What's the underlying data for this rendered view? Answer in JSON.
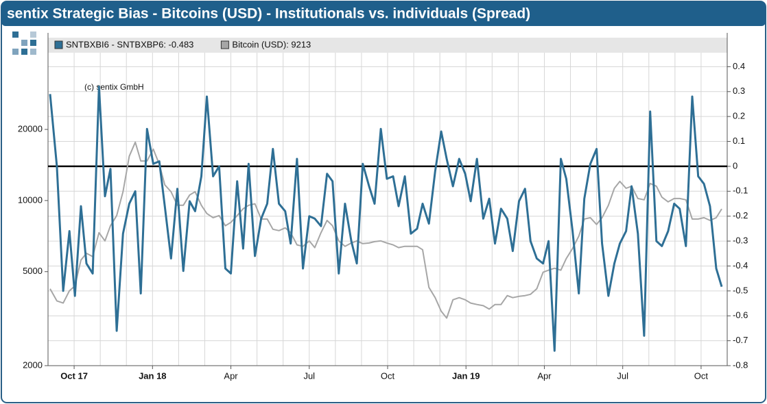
{
  "chart_data": {
    "type": "line",
    "title": "sentix Strategic Bias - Bitcoins (USD) - Institutionals vs. individuals (Spread)",
    "annotation": "(c) sentix GmbH",
    "x": [
      -0.92,
      -0.66,
      -0.42,
      -0.18,
      0.03,
      0.26,
      0.47,
      0.71,
      0.95,
      1.18,
      1.39,
      1.63,
      1.87,
      2.11,
      2.34,
      2.55,
      2.79,
      3.03,
      3.26,
      3.47,
      3.71,
      3.95,
      4.18,
      4.42,
      4.63,
      4.87,
      5.08,
      5.32,
      5.55,
      5.79,
      6.0,
      6.24,
      6.47,
      6.68,
      6.92,
      7.16,
      7.39,
      7.61,
      7.84,
      8.08,
      8.29,
      8.53,
      8.76,
      9.0,
      9.21,
      9.45,
      9.68,
      9.89,
      10.13,
      10.37,
      10.61,
      10.82,
      11.05,
      11.29,
      11.5,
      11.74,
      11.97,
      12.21,
      12.42,
      12.66,
      12.89,
      13.13,
      13.34,
      13.58,
      13.82,
      14.05,
      14.26,
      14.5,
      14.74,
      14.97,
      15.18,
      15.42,
      15.66,
      15.89,
      16.11,
      16.34,
      16.58,
      16.79,
      17.03,
      17.26,
      17.47,
      17.71,
      17.95,
      18.16,
      18.39,
      18.63,
      18.84,
      19.08,
      19.32,
      19.53,
      19.76,
      20.0,
      20.21,
      20.45,
      20.68,
      20.89,
      21.13,
      21.34,
      21.58,
      21.82,
      22.05,
      22.29,
      22.5,
      22.74,
      22.97,
      23.18,
      23.42,
      23.66,
      23.89,
      24.11,
      24.34,
      24.58,
      24.79
    ],
    "series": [
      {
        "name": "SNTBXBI6 - SNTBXBP6: -0.483",
        "color": "#2e6f95",
        "axis": "y2",
        "values": [
          0.29,
          0.0,
          -0.5,
          -0.26,
          -0.52,
          -0.16,
          -0.39,
          -0.43,
          0.32,
          -0.12,
          -0.01,
          -0.66,
          -0.27,
          -0.15,
          -0.1,
          -0.51,
          0.15,
          0.01,
          0.02,
          -0.16,
          -0.37,
          -0.09,
          -0.42,
          -0.14,
          -0.18,
          -0.04,
          0.28,
          -0.04,
          0.0,
          -0.41,
          -0.43,
          -0.06,
          -0.33,
          0.01,
          -0.36,
          -0.21,
          -0.15,
          0.07,
          -0.15,
          -0.18,
          -0.31,
          0.03,
          -0.41,
          -0.2,
          -0.21,
          -0.24,
          -0.03,
          -0.06,
          -0.43,
          -0.15,
          -0.3,
          -0.39,
          0.01,
          -0.08,
          -0.15,
          0.15,
          -0.05,
          -0.04,
          -0.16,
          -0.04,
          -0.27,
          -0.25,
          -0.15,
          -0.23,
          -0.02,
          0.14,
          0.03,
          -0.08,
          0.03,
          -0.03,
          -0.14,
          0.03,
          -0.21,
          -0.13,
          -0.31,
          -0.17,
          -0.21,
          -0.34,
          -0.14,
          -0.09,
          -0.3,
          -0.37,
          -0.39,
          -0.3,
          -0.74,
          0.03,
          -0.05,
          -0.26,
          -0.51,
          -0.13,
          0.01,
          0.07,
          -0.31,
          -0.52,
          -0.39,
          -0.31,
          -0.26,
          -0.08,
          -0.27,
          -0.68,
          0.22,
          -0.3,
          -0.32,
          -0.26,
          -0.15,
          -0.17,
          -0.32,
          0.28,
          -0.04,
          -0.07,
          -0.16,
          -0.41,
          -0.483
        ]
      },
      {
        "name": "Bitcoin (USD): 9213",
        "color": "#a6a6a6",
        "axis": "y",
        "values": [
          4230,
          3760,
          3680,
          4150,
          4350,
          5600,
          5980,
          5790,
          7310,
          6750,
          7820,
          8640,
          10900,
          15400,
          17650,
          14700,
          14700,
          16500,
          14240,
          11660,
          10900,
          9550,
          9550,
          10550,
          10900,
          9550,
          8810,
          8460,
          8640,
          7820,
          8080,
          8640,
          9230,
          9550,
          9690,
          8350,
          8350,
          7560,
          7460,
          7660,
          7310,
          6490,
          6400,
          6750,
          6320,
          7310,
          8240,
          7820,
          6750,
          6400,
          6610,
          6750,
          6570,
          6610,
          6700,
          6750,
          6610,
          6490,
          6320,
          6400,
          6400,
          6400,
          6190,
          4290,
          3880,
          3400,
          3180,
          3800,
          3880,
          3800,
          3680,
          3630,
          3590,
          3470,
          3630,
          3630,
          3960,
          3880,
          3930,
          3960,
          4010,
          4230,
          4970,
          5070,
          5170,
          5070,
          5680,
          6270,
          7070,
          8350,
          8460,
          7920,
          8460,
          9550,
          11270,
          12050,
          11270,
          11500,
          10200,
          10070,
          11810,
          11500,
          10340,
          9870,
          10200,
          10200,
          10070,
          8350,
          8350,
          8460,
          8240,
          8460,
          9213
        ]
      }
    ],
    "xlim": [
      -1,
      25
    ],
    "xticks": [
      {
        "value": 0,
        "label": "Oct 17"
      },
      {
        "value": 3,
        "label": "Jan 18"
      },
      {
        "value": 6,
        "label": "Apr"
      },
      {
        "value": 9,
        "label": "Jul"
      },
      {
        "value": 12,
        "label": "Oct"
      },
      {
        "value": 15,
        "label": "Jan 19"
      },
      {
        "value": 18,
        "label": "Apr"
      },
      {
        "value": 21,
        "label": "Jul"
      },
      {
        "value": 24,
        "label": "Oct"
      }
    ],
    "xminorticks": [
      -1,
      1,
      2,
      4,
      5,
      7,
      8,
      10,
      11,
      13,
      14,
      16,
      17,
      19,
      20,
      22,
      23,
      25
    ],
    "ylim": [
      2000,
      47000
    ],
    "ylog": true,
    "yticks": [
      2000,
      5000,
      10000,
      20000
    ],
    "y2lim": [
      -0.8,
      0.5
    ],
    "y2ticks": [
      -0.8,
      -0.7,
      -0.6,
      -0.5,
      -0.4,
      -0.3,
      -0.2,
      -0.1,
      0,
      0.1,
      0.2,
      0.3,
      0.4
    ],
    "reference_line": {
      "axis": "y2",
      "value": 0
    },
    "grid": true
  }
}
